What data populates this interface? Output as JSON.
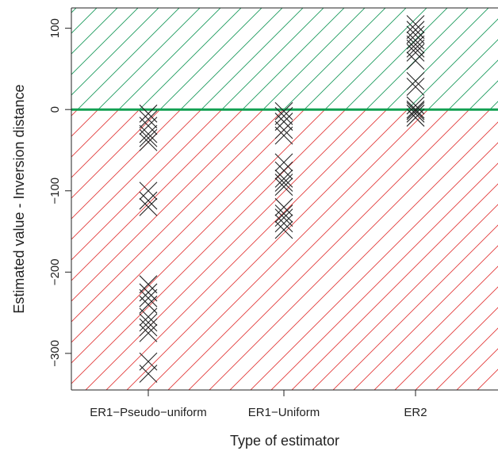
{
  "chart_data": {
    "type": "scatter",
    "title": "",
    "xlabel": "Type of estimator",
    "ylabel": "Estimated value - Inversion distance",
    "categories": [
      "ER1−Pseudo−uniform",
      "ER1−Uniform",
      "ER2"
    ],
    "ylim": [
      -345,
      125
    ],
    "y_ticks": [
      100,
      0,
      -100,
      -200,
      -300
    ],
    "y_tick_labels": [
      "100",
      "0",
      "−100",
      "−200",
      "−300"
    ],
    "reference_line": 0,
    "colors": {
      "above_hatch": "#1a9a5c",
      "below_hatch": "#e23a3a",
      "reference_line": "#12a052",
      "points": "#222222"
    },
    "marker": "cross",
    "series": [
      {
        "category": "ER1−Pseudo−uniform",
        "values": [
          -5,
          -12,
          -20,
          -30,
          -35,
          -40,
          -100,
          -112,
          -120,
          -215,
          -225,
          -232,
          -240,
          -255,
          -262,
          -268,
          -275,
          -310,
          -325
        ]
      },
      {
        "category": "ER1−Uniform",
        "values": [
          -2,
          -8,
          -15,
          -25,
          -32,
          -65,
          -75,
          -85,
          -90,
          -95,
          -120,
          -128,
          -133,
          -140,
          -148
        ]
      },
      {
        "category": "ER2",
        "values": [
          105,
          98,
          92,
          85,
          80,
          75,
          70,
          60,
          35,
          28,
          5,
          0,
          -2,
          -5,
          -10
        ]
      }
    ]
  }
}
